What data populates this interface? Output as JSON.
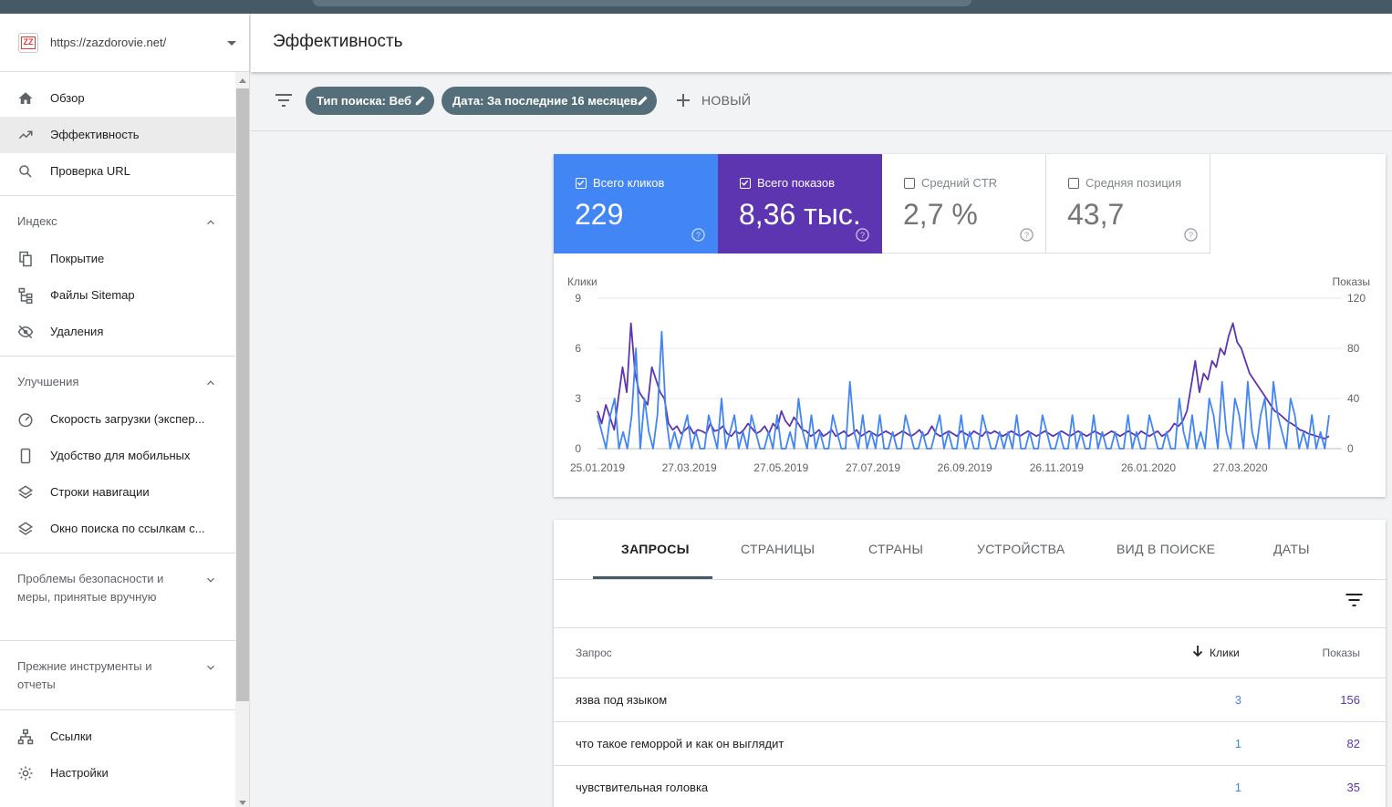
{
  "property": {
    "url": "https://zazdorovie.net/",
    "favicon_text": "ZZ"
  },
  "nav": {
    "overview": "Обзор",
    "performance": "Эффективность",
    "url_inspection": "Проверка URL",
    "index_section": "Индекс",
    "coverage": "Покрытие",
    "sitemaps": "Файлы Sitemap",
    "removals": "Удаления",
    "enhancements_section": "Улучшения",
    "speed": "Скорость загрузки (экспер...",
    "mobile": "Удобство для мобильных",
    "breadcrumbs": "Строки навигации",
    "sitelinks_search": "Окно поиска по ссылкам с...",
    "security_section": "Проблемы безопасности и меры, принятые вручную",
    "legacy_section": "Прежние инструменты и отчеты",
    "links": "Ссылки",
    "settings": "Настройки"
  },
  "page": {
    "title": "Эффективность"
  },
  "filters": {
    "search_type": "Тип поиска: Веб",
    "date": "Дата: За последние 16 месяцев",
    "new": "НОВЫЙ"
  },
  "metrics": {
    "clicks": {
      "label": "Всего кликов",
      "value": "229",
      "checked": true,
      "color": "#4285f4"
    },
    "impressions": {
      "label": "Всего показов",
      "value": "8,36 тыс.",
      "checked": true,
      "color": "#5e35b1"
    },
    "ctr": {
      "label": "Средний CTR",
      "value": "2,7 %",
      "checked": false
    },
    "position": {
      "label": "Средняя позиция",
      "value": "43,7",
      "checked": false
    }
  },
  "chart_data": {
    "type": "line",
    "left_axis_label": "Клики",
    "right_axis_label": "Показы",
    "left_ticks": [
      "9",
      "6",
      "3",
      "0"
    ],
    "right_ticks": [
      "120",
      "80",
      "40",
      "0"
    ],
    "ylim_left": [
      0,
      9
    ],
    "ylim_right": [
      0,
      120
    ],
    "x_ticks": [
      "25.01.2019",
      "27.03.2019",
      "27.05.2019",
      "27.07.2019",
      "26.09.2019",
      "26.11.2019",
      "26.01.2020",
      "27.03.2020"
    ],
    "x_range": [
      "2019-01-25",
      "2020-05-25"
    ],
    "grid": true,
    "series": [
      {
        "name": "Клики",
        "axis": "left",
        "color": "#4285f4",
        "values": [
          2,
          1,
          0,
          2,
          3,
          0,
          1,
          0,
          2,
          6,
          0,
          3,
          1,
          0,
          2,
          7,
          2,
          0,
          1,
          0,
          1,
          2,
          0,
          1,
          0,
          0,
          2,
          1,
          0,
          3,
          0,
          1,
          2,
          0,
          1,
          0,
          2,
          1,
          0,
          0,
          1,
          0,
          2,
          0,
          0,
          1,
          0,
          3,
          1,
          0,
          2,
          0,
          1,
          0,
          0,
          2,
          1,
          0,
          0,
          4,
          1,
          0,
          2,
          0,
          1,
          0,
          2,
          0,
          0,
          1,
          0,
          0,
          2,
          1,
          0,
          0,
          1,
          0,
          0,
          1,
          2,
          0,
          1,
          0,
          0,
          2,
          0,
          1,
          0,
          0,
          2,
          1,
          0,
          0,
          1,
          0,
          1,
          0,
          2,
          0,
          0,
          1,
          0,
          0,
          2,
          1,
          0,
          0,
          1,
          0,
          0,
          2,
          0,
          1,
          0,
          0,
          2,
          0,
          1,
          0,
          0,
          1,
          0,
          0,
          2,
          0,
          1,
          0,
          0,
          2,
          1,
          0,
          0,
          1,
          0,
          0,
          3,
          1,
          0,
          2,
          0,
          1,
          0,
          3,
          2,
          0,
          4,
          1,
          0,
          3,
          2,
          0,
          4,
          1,
          0,
          2,
          3,
          0,
          4,
          2,
          1,
          0,
          3,
          2,
          0,
          1,
          0,
          2,
          0,
          1,
          0,
          2
        ]
      },
      {
        "name": "Показы",
        "axis": "right",
        "color": "#5e35b1",
        "values": [
          30,
          20,
          35,
          25,
          15,
          40,
          65,
          45,
          100,
          60,
          45,
          40,
          35,
          65,
          55,
          45,
          40,
          20,
          15,
          18,
          12,
          15,
          18,
          12,
          15,
          14,
          12,
          20,
          14,
          15,
          18,
          12,
          10,
          14,
          12,
          15,
          20,
          16,
          12,
          14,
          18,
          12,
          20,
          16,
          30,
          22,
          18,
          25,
          20,
          15,
          14,
          10,
          12,
          15,
          10,
          12,
          15,
          10,
          12,
          14,
          10,
          12,
          15,
          10,
          12,
          14,
          12,
          10,
          12,
          14,
          12,
          10,
          12,
          14,
          12,
          10,
          12,
          15,
          10,
          12,
          18,
          12,
          10,
          12,
          14,
          12,
          10,
          14,
          12,
          10,
          14,
          12,
          10,
          14,
          12,
          14,
          12,
          10,
          12,
          14,
          12,
          10,
          12,
          14,
          12,
          10,
          12,
          14,
          12,
          10,
          12,
          14,
          12,
          10,
          12,
          14,
          12,
          10,
          12,
          14,
          12,
          10,
          12,
          14,
          12,
          10,
          12,
          14,
          12,
          10,
          14,
          12,
          10,
          12,
          14,
          10,
          12,
          15,
          20,
          18,
          22,
          30,
          50,
          70,
          45,
          60,
          55,
          70,
          65,
          80,
          75,
          90,
          100,
          85,
          80,
          70,
          60,
          55,
          50,
          45,
          40,
          35,
          30,
          28,
          25,
          22,
          20,
          18,
          15,
          14,
          12,
          11,
          10,
          9,
          8,
          10
        ]
      }
    ]
  },
  "tabs": [
    "ЗАПРОСЫ",
    "СТРАНИЦЫ",
    "СТРАНЫ",
    "УСТРОЙСТВА",
    "ВИД В ПОИСКЕ",
    "ДАТЫ"
  ],
  "table": {
    "headers": {
      "query": "Запрос",
      "clicks": "Клики",
      "impressions": "Показы"
    },
    "rows": [
      {
        "query": "язва под языком",
        "clicks": "3",
        "impressions": "156"
      },
      {
        "query": "что такое геморрой и как он выглядит",
        "clicks": "1",
        "impressions": "82"
      },
      {
        "query": "чувствительная головка",
        "clicks": "1",
        "impressions": "35"
      }
    ]
  }
}
